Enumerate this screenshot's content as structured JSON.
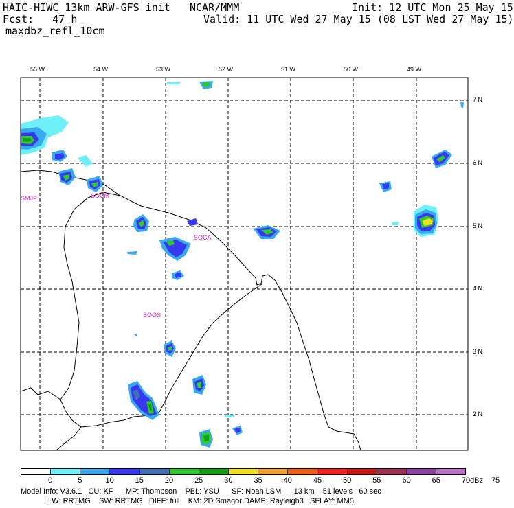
{
  "header": {
    "model": "HAIC-HIWC 13km ARW-GFS init",
    "center": "NCAR/MMM",
    "init": "Init: 12 UTC Mon 25 May 15",
    "fcst": "Fcst:   47 h",
    "valid": "Valid: 11 UTC Wed 27 May 15 (08 LST Wed 27 May 15)",
    "field": "maxdbz_refl_10cm"
  },
  "map": {
    "lon_labels": [
      "55 W",
      "54 W",
      "53 W",
      "52 W",
      "51 W",
      "50 W",
      "49 W"
    ],
    "lat_labels": [
      "7 N",
      "6 N",
      "5 N",
      "4 N",
      "3 N",
      "2 N"
    ],
    "stations": [
      "SMJP",
      "SOCM",
      "SOCA",
      "SOOS"
    ]
  },
  "colorbar": {
    "unit": "dBz",
    "ticks": [
      "0",
      "5",
      "10",
      "15",
      "20",
      "25",
      "30",
      "35",
      "40",
      "45",
      "50",
      "55",
      "60",
      "65",
      "70",
      "75"
    ],
    "colors": [
      "#ffffff",
      "#6ef0f8",
      "#38a8f0",
      "#3838f0",
      "#4070b8",
      "#30c830",
      "#10a010",
      "#f0e020",
      "#f0a030",
      "#f06010",
      "#f02020",
      "#c81818",
      "#a03050",
      "#9040a0",
      "#b870c8"
    ]
  },
  "footer": {
    "line1": "Model Info: V3.6.1   CU: KF      MP: Thompson    PBL: YSU      SF: Noah LSM      13 km    51 levels   60 sec",
    "line2": "LW: RRTMG    SW: RRTMG   DIFF: full    KM: 2D Smagor DAMP: Rayleigh3   SFLAY: MM5"
  }
}
